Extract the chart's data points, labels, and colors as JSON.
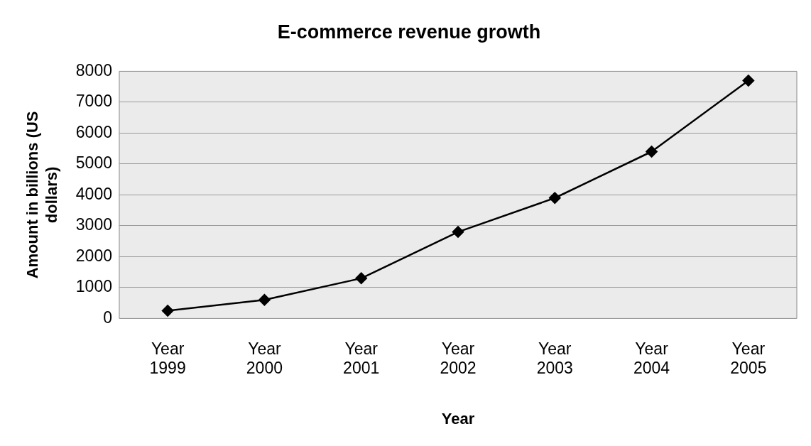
{
  "chart_data": {
    "type": "line",
    "title": "E-commerce revenue growth",
    "xlabel": "Year",
    "ylabel": "Amount in billions (US dollars)",
    "categories": [
      "Year 1999",
      "Year 2000",
      "Year 2001",
      "Year 2002",
      "Year 2003",
      "Year 2004",
      "Year 2005"
    ],
    "series": [
      {
        "color": "#000000",
        "values": [
          250,
          600,
          1300,
          2800,
          3900,
          5400,
          7700
        ]
      }
    ],
    "ylim": [
      0,
      8000
    ],
    "yticks": [
      0,
      1000,
      2000,
      3000,
      4000,
      5000,
      6000,
      7000,
      8000
    ],
    "grid": "y",
    "legend": false,
    "marker": "diamond",
    "line_style": "solid"
  }
}
